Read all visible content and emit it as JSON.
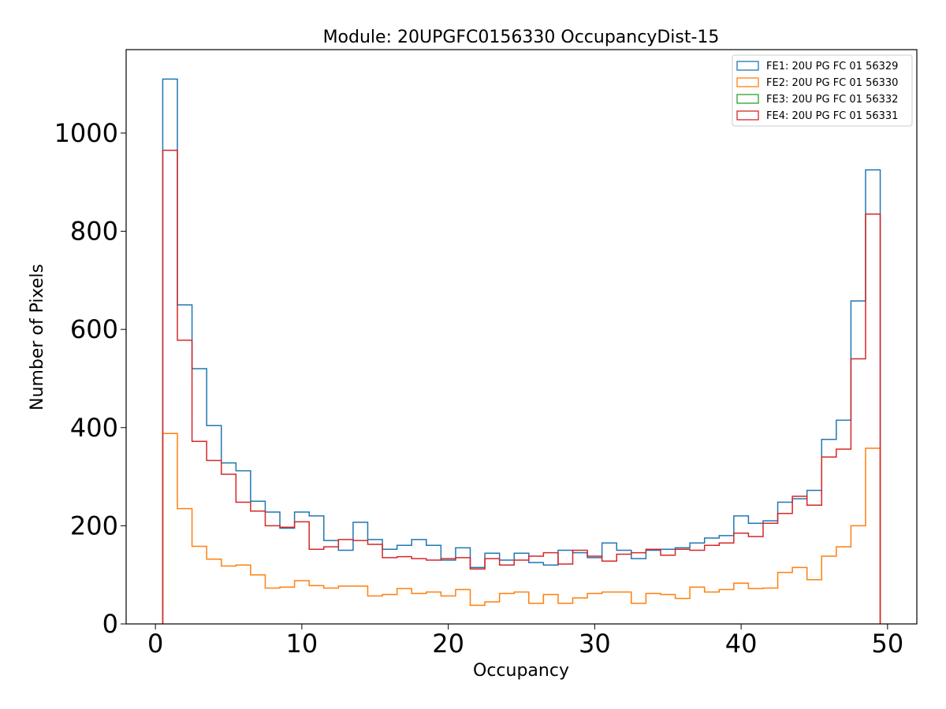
{
  "chart_data": {
    "type": "histogram-step",
    "title": "Module: 20UPGFC0156330 OccupancyDist-15",
    "xlabel": "Occupancy",
    "ylabel": "Number of Pixels",
    "xlim": [
      -2,
      52
    ],
    "ylim": [
      0,
      1170
    ],
    "xticks": [
      0,
      10,
      20,
      30,
      40,
      50
    ],
    "yticks": [
      0,
      200,
      400,
      600,
      800,
      1000
    ],
    "bin_start": 0.5,
    "bin_width": 1,
    "legend_position": "top-right",
    "series": [
      {
        "name": "FE1: 20U PG FC 01 56329",
        "color": "#1f77b4",
        "values": [
          1110,
          650,
          520,
          404,
          328,
          312,
          250,
          228,
          195,
          228,
          220,
          170,
          150,
          207,
          172,
          152,
          160,
          172,
          160,
          130,
          155,
          115,
          144,
          130,
          144,
          125,
          120,
          150,
          145,
          135,
          165,
          150,
          133,
          150,
          152,
          155,
          165,
          175,
          180,
          220,
          205,
          210,
          248,
          255,
          272,
          376,
          415,
          658,
          925
        ]
      },
      {
        "name": "FE2: 20U PG FC 01 56330",
        "color": "#ff7f0e",
        "values": [
          388,
          235,
          158,
          132,
          118,
          120,
          100,
          73,
          75,
          88,
          78,
          73,
          77,
          77,
          57,
          60,
          72,
          62,
          65,
          57,
          70,
          38,
          45,
          62,
          65,
          42,
          60,
          42,
          53,
          62,
          65,
          65,
          42,
          62,
          60,
          52,
          75,
          65,
          70,
          83,
          72,
          73,
          105,
          115,
          90,
          138,
          157,
          200,
          358
        ]
      },
      {
        "name": "FE3: 20U PG FC 01 56332",
        "color": "#2ca02c",
        "values": []
      },
      {
        "name": "FE4: 20U PG FC 01 56331",
        "color": "#d62728",
        "values": [
          965,
          578,
          372,
          333,
          305,
          248,
          230,
          200,
          197,
          208,
          152,
          157,
          172,
          170,
          162,
          135,
          137,
          133,
          130,
          133,
          135,
          112,
          133,
          120,
          130,
          138,
          145,
          122,
          150,
          138,
          128,
          142,
          145,
          152,
          140,
          152,
          150,
          160,
          165,
          185,
          178,
          205,
          225,
          260,
          242,
          340,
          356,
          540,
          835
        ]
      }
    ]
  }
}
